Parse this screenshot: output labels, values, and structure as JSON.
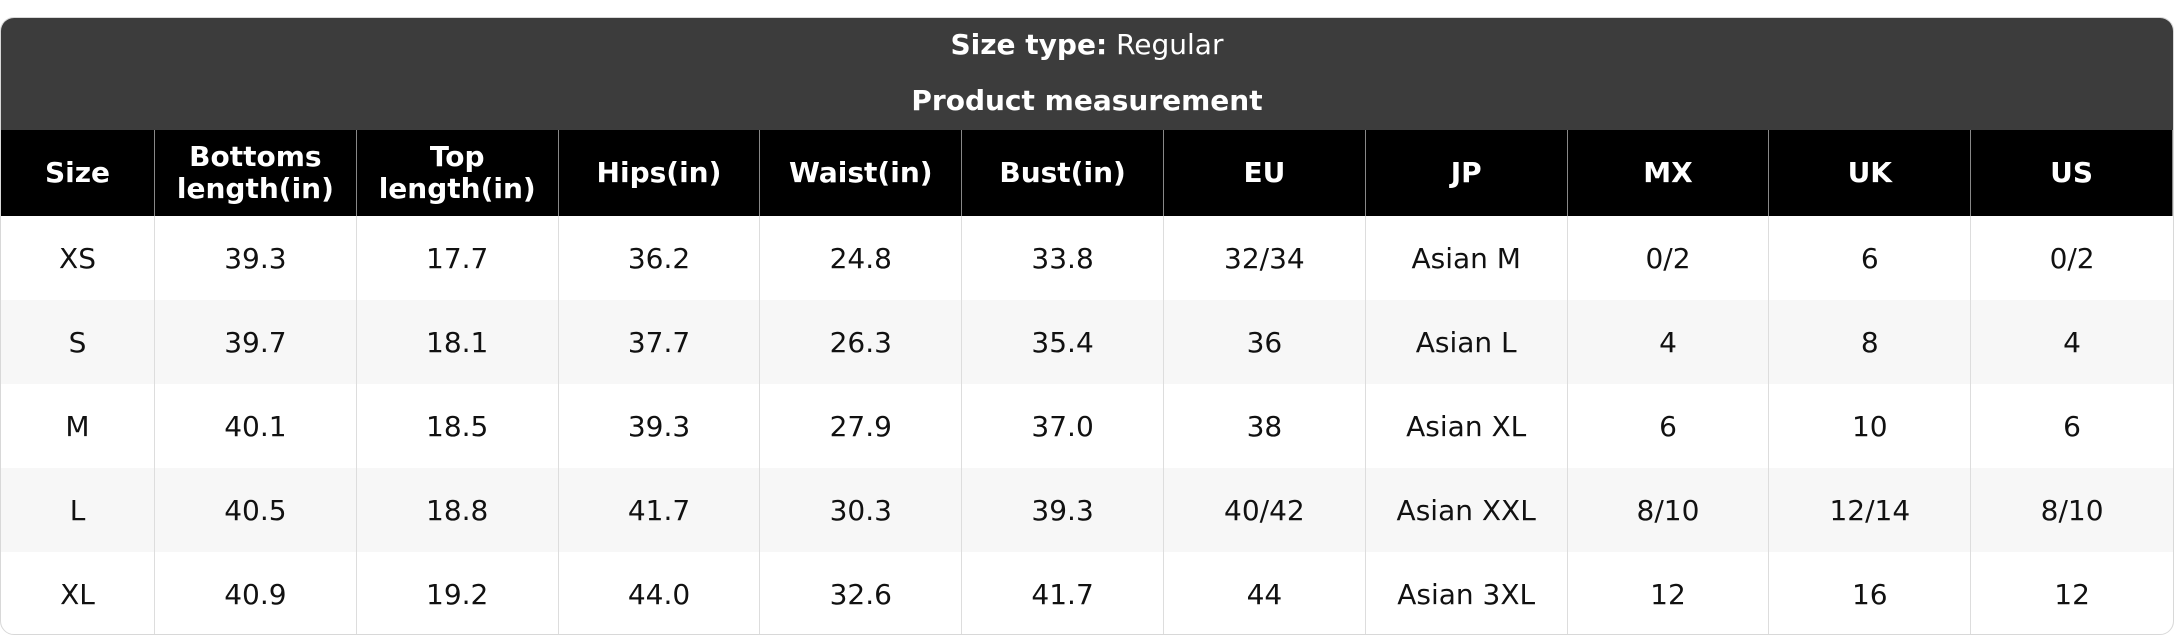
{
  "header": {
    "size_type_label": "Size type:",
    "size_type": "Regular",
    "title": "Product measurement"
  },
  "table": {
    "columns": [
      "Size",
      "Bottoms length(in)",
      "Top length(in)",
      "Hips(in)",
      "Waist(in)",
      "Bust(in)",
      "EU",
      "JP",
      "MX",
      "UK",
      "US"
    ],
    "rows": [
      [
        "XS",
        "39.3",
        "17.7",
        "36.2",
        "24.8",
        "33.8",
        "32/34",
        "Asian M",
        "0/2",
        "6",
        "0/2"
      ],
      [
        "S",
        "39.7",
        "18.1",
        "37.7",
        "26.3",
        "35.4",
        "36",
        "Asian L",
        "4",
        "8",
        "4"
      ],
      [
        "M",
        "40.1",
        "18.5",
        "39.3",
        "27.9",
        "37.0",
        "38",
        "Asian XL",
        "6",
        "10",
        "6"
      ],
      [
        "L",
        "40.5",
        "18.8",
        "41.7",
        "30.3",
        "39.3",
        "40/42",
        "Asian XXL",
        "8/10",
        "12/14",
        "8/10"
      ],
      [
        "XL",
        "40.9",
        "19.2",
        "44.0",
        "32.6",
        "41.7",
        "44",
        "Asian 3XL",
        "12",
        "16",
        "12"
      ]
    ]
  }
}
